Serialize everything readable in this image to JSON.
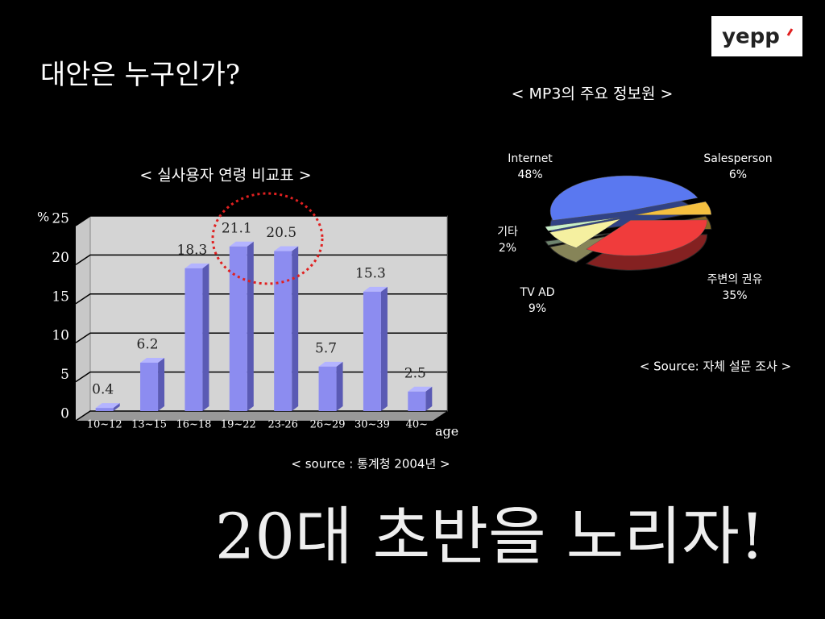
{
  "slide": {
    "title": "대안은 누구인가?",
    "logo": "yepp",
    "headline": "20대 초반을 노리자!"
  },
  "chart_data": [
    {
      "type": "bar",
      "title": "< 실사용자 연령 비교표 >",
      "ylabel": "%",
      "xlabel": "age",
      "categories": [
        "10~12",
        "13~15",
        "16~18",
        "19~22",
        "23-26",
        "26~29",
        "30~39",
        "40~"
      ],
      "values": [
        0.4,
        6.2,
        18.3,
        21.1,
        20.5,
        5.7,
        15.3,
        2.5
      ],
      "ylim": [
        0,
        25
      ],
      "yticks": [
        0,
        5,
        10,
        15,
        20,
        25
      ],
      "grid": true,
      "color": "#8c8cf0",
      "source": "< source : 통계청 2004년 >"
    },
    {
      "type": "pie",
      "title": "< MP3의 주요 정보원 >",
      "categories": [
        "Internet",
        "Salesperson",
        "주변의 권유",
        "TV AD",
        "기타"
      ],
      "values": [
        48,
        6,
        35,
        9,
        2
      ],
      "value_labels": [
        "48%",
        "6%",
        "35%",
        "9%",
        "2%"
      ],
      "colors": [
        "#5a78f0",
        "#f5c040",
        "#f03c3c",
        "#f5f0a0",
        "#c8f0c8"
      ],
      "source": "< Source: 자체 설문 조사 >"
    }
  ]
}
